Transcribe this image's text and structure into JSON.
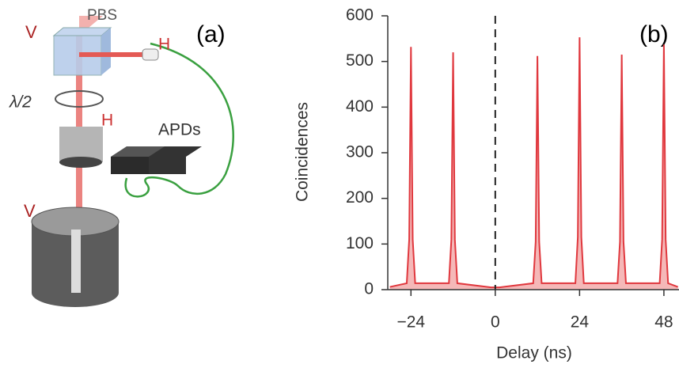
{
  "diagram": {
    "panel_label": "(a)",
    "labels": [
      "V",
      "PBS",
      "H",
      "λ/2",
      "H",
      "APDs",
      "V"
    ]
  },
  "chart_data": {
    "type": "line",
    "panel_label": "(b)",
    "x_label": "Delay (ns)",
    "y_label": "Coincidences",
    "x": [
      -30,
      -25.2,
      -24.5,
      -24,
      -23.5,
      -22.8,
      -13.2,
      -12.5,
      -12,
      -11.5,
      -10.8,
      -1.2,
      1.2,
      10.8,
      11.5,
      12,
      12.5,
      13.2,
      22.8,
      23.5,
      24,
      24.5,
      25.2,
      34.8,
      35.5,
      36,
      36.5,
      37.2,
      46.8,
      47.5,
      48,
      48.5,
      49.2,
      52
    ],
    "series": [
      {
        "color": "#e0383e",
        "fill": "#f5b8b8",
        "values": [
          6,
          14,
          110,
          532,
          110,
          14,
          14,
          110,
          520,
          110,
          14,
          5,
          5,
          14,
          105,
          512,
          105,
          14,
          14,
          115,
          553,
          115,
          14,
          14,
          105,
          515,
          105,
          14,
          14,
          110,
          537,
          110,
          14,
          6
        ]
      }
    ],
    "xlim": [
      -30.6,
      52.3
    ],
    "ylim": [
      0,
      600
    ],
    "xticks": [
      {
        "value": -24,
        "label": "−24"
      },
      0,
      24,
      48
    ],
    "yticks": [
      0,
      100,
      200,
      300,
      400,
      500,
      600
    ],
    "vline": 0
  }
}
